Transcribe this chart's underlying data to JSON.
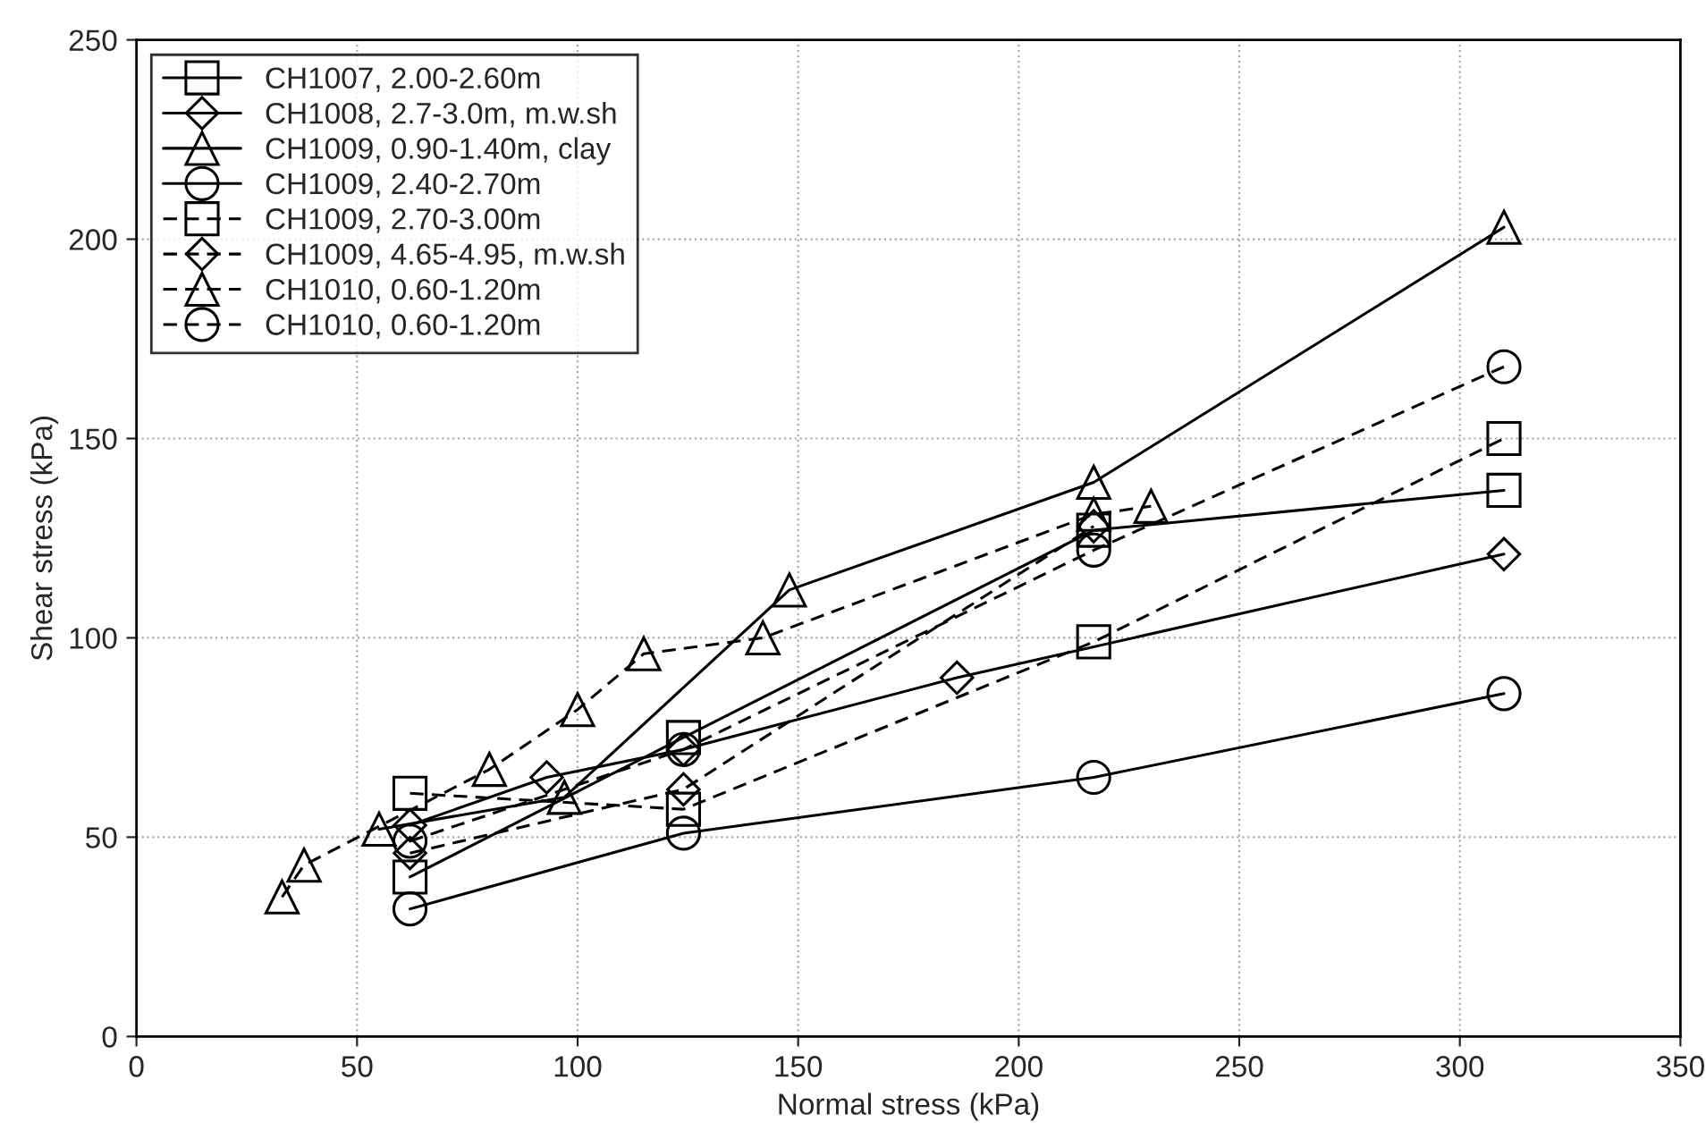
{
  "chart_data": {
    "type": "line",
    "xlabel": "Normal stress (kPa)",
    "ylabel": "Shear stress (kPa)",
    "xlim": [
      0,
      350
    ],
    "xticks": [
      0,
      50,
      100,
      150,
      200,
      250,
      300,
      350
    ],
    "ylim": [
      0,
      250
    ],
    "yticks": [
      0,
      50,
      100,
      150,
      200,
      250
    ],
    "grid": true,
    "legend": "top left",
    "series": [
      {
        "name": "CH1007, 2.00-2.60m",
        "color": "#000000",
        "marker": "square",
        "line_style": "solid",
        "x": [
          62,
          124,
          217,
          310
        ],
        "values": [
          40,
          75,
          127,
          137
        ]
      },
      {
        "name": "CH1008, 2.7-3.0m, m.w.sh",
        "color": "#000000",
        "marker": "diamond",
        "line_style": "solid",
        "x": [
          62,
          93,
          124,
          186,
          310
        ],
        "values": [
          53,
          65,
          72,
          90,
          121
        ]
      },
      {
        "name": "CH1009, 0.90-1.40m, clay",
        "color": "#000000",
        "marker": "triangle",
        "line_style": "solid",
        "x": [
          55,
          97,
          148,
          217,
          310
        ],
        "values": [
          52,
          60,
          112,
          139,
          203
        ]
      },
      {
        "name": "CH1009, 2.40-2.70m",
        "color": "#000000",
        "marker": "circle",
        "line_style": "solid",
        "x": [
          62,
          124,
          217,
          310
        ],
        "values": [
          32,
          51,
          65,
          86
        ]
      },
      {
        "name": "CH1009, 2.70-3.00m",
        "color": "#000000",
        "marker": "square",
        "line_style": "dashed",
        "x": [
          62,
          124,
          217,
          310
        ],
        "values": [
          61,
          57,
          99,
          150
        ]
      },
      {
        "name": "CH1009, 4.65-4.95, m.w.sh",
        "color": "#000000",
        "marker": "diamond",
        "line_style": "dashed",
        "x": [
          62,
          124,
          217
        ],
        "values": [
          46,
          62,
          128
        ]
      },
      {
        "name": "CH1010, 0.60-1.20m",
        "color": "#000000",
        "marker": "triangle",
        "line_style": "dashed",
        "x": [
          33,
          38,
          80,
          100,
          115,
          142,
          217,
          230
        ],
        "values": [
          35,
          43,
          67,
          82,
          96,
          100,
          131,
          133
        ]
      },
      {
        "name": "CH1010, 0.60-1.20m",
        "color": "#000000",
        "marker": "circle",
        "line_style": "dashed",
        "x": [
          62,
          124,
          217,
          310
        ],
        "values": [
          49,
          72,
          122,
          168
        ]
      }
    ]
  }
}
